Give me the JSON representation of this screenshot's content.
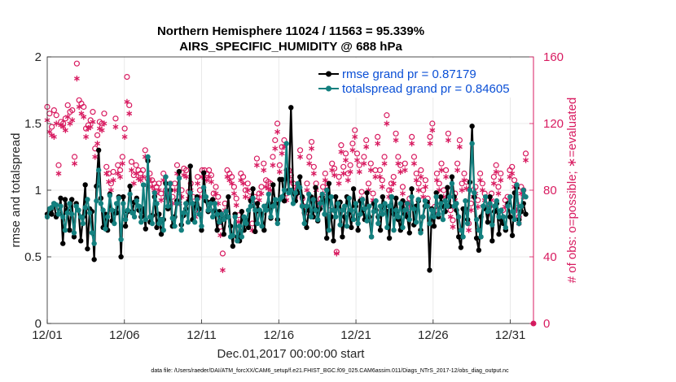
{
  "chart_data": {
    "type": "line",
    "title": "Northern Hemisphere 11024 / 11563 = 95.339%",
    "subtitle": "AIRS_SPECIFIC_HUMIDITY @ 688 hPa",
    "xlabel": "Dec.01,2017 00:00:00 start",
    "ylabel_left": "rmse and totalspread",
    "ylabel_right": "# of obs: o=possible; ∗=evaluated",
    "xlim": [
      0,
      31.5
    ],
    "ylim_left": [
      0,
      2
    ],
    "ylim_right": [
      0,
      160
    ],
    "x_ticks": [
      0,
      5,
      10,
      15,
      20,
      25,
      30
    ],
    "x_tick_labels": [
      "12/01",
      "12/06",
      "12/11",
      "12/16",
      "12/21",
      "12/26",
      "12/31"
    ],
    "y_left_ticks": [
      0,
      0.5,
      1,
      1.5,
      2
    ],
    "y_left_tick_labels": [
      "0",
      "0.5",
      "1",
      "1.5",
      "2"
    ],
    "y_right_ticks": [
      0,
      40,
      80,
      120,
      160
    ],
    "y_right_tick_labels": [
      "0",
      "40",
      "80",
      "120",
      "160"
    ],
    "grid": true,
    "legend_position": "top-right",
    "series": [
      {
        "name": "rmse grand pr = 0.87179",
        "axis": "left",
        "color": "#000000",
        "marker": "filled-circle",
        "values": [
          0.82,
          0.85,
          0.82,
          0.9,
          0.8,
          0.82,
          0.94,
          0.6,
          0.93,
          0.85,
          0.7,
          0.93,
          0.65,
          0.9,
          0.85,
          0.62,
          0.8,
          1.04,
          0.56,
          0.86,
          0.84,
          0.48,
          1.03,
          1.3,
          0.94,
          0.72,
          0.82,
          0.7,
          0.97,
          0.77,
          0.84,
          0.83,
          0.95,
          0.5,
          0.95,
          0.73,
          0.84,
          1.03,
          0.84,
          0.91,
          0.94,
          0.85,
          0.8,
          0.86,
          0.71,
          1.22,
          0.76,
          0.81,
          0.95,
          0.72,
          0.82,
          0.67,
          0.78,
          1.05,
          0.86,
          1.0,
          0.73,
          0.8,
          0.92,
          1.14,
          0.74,
          0.81,
          0.86,
          0.91,
          1.18,
          0.78,
          0.89,
          0.95,
          0.86,
          0.7,
          1.13,
          0.92,
          0.84,
          0.91,
          0.93,
          0.85,
          0.7,
          0.84,
          0.78,
          0.67,
          0.8,
          0.95,
          0.73,
          0.58,
          0.82,
          0.65,
          0.62,
          0.84,
          0.7,
          0.78,
          0.72,
          0.92,
          1.01,
          0.69,
          0.9,
          0.84,
          0.82,
          0.7,
          0.88,
          0.9,
          0.79,
          1.04,
          0.9,
          0.78,
          1.08,
          1.08,
          0.92,
          1.15,
          1.0,
          1.62,
          0.98,
          0.92,
          0.98,
          1.1,
          0.95,
          0.83,
          0.72,
          0.85,
          0.95,
          0.8,
          1.02,
          0.77,
          0.86,
          0.95,
          0.92,
          0.64,
          1.05,
          0.8,
          0.62,
          0.95,
          0.88,
          0.91,
          0.65,
          0.8,
          0.95,
          0.83,
          0.72,
          1.01,
          0.88,
          0.7,
          0.92,
          0.85,
          0.78,
          0.98,
          0.8,
          0.65,
          0.9,
          0.85,
          0.8,
          0.7,
          0.95,
          0.88,
          0.84,
          0.64,
          0.95,
          0.82,
          0.94,
          0.78,
          0.7,
          0.92,
          0.82,
          0.8,
          0.68,
          1.01,
          0.74,
          0.88,
          0.92,
          0.7,
          0.8,
          0.88,
          0.91,
          0.4,
          0.86,
          0.73,
          0.98,
          0.8,
          0.95,
          0.88,
          0.84,
          1.02,
          0.88,
          1.1,
          0.95,
          0.85,
          0.65,
          0.57,
          0.86,
          0.86,
          0.78,
          1.06,
          1.48,
          0.95,
          0.64,
          0.55,
          0.8,
          0.88,
          0.86,
          0.76,
          0.95,
          0.62,
          0.84,
          0.9,
          0.67,
          0.78,
          0.75,
          0.7,
          0.9,
          0.8,
          0.66,
          0.98,
          1.02,
          0.78,
          0.84,
          0.9,
          0.82
        ]
      },
      {
        "name": "totalspread grand pr = 0.84605",
        "axis": "left",
        "color": "#13807f",
        "marker": "filled-circle",
        "values": [
          0.8,
          0.86,
          0.87,
          0.9,
          0.89,
          0.82,
          0.88,
          0.8,
          0.7,
          0.83,
          0.9,
          0.82,
          0.68,
          0.88,
          0.85,
          0.8,
          0.75,
          0.87,
          0.93,
          0.83,
          0.68,
          0.6,
          0.92,
          1.15,
          0.9,
          0.85,
          0.71,
          0.8,
          0.96,
          0.85,
          0.75,
          0.9,
          0.94,
          0.63,
          0.9,
          0.78,
          0.85,
          0.97,
          0.83,
          0.8,
          0.92,
          0.88,
          0.76,
          1.04,
          0.78,
          1.25,
          0.8,
          0.75,
          0.98,
          0.9,
          0.75,
          0.78,
          0.7,
          1.1,
          0.88,
          1.05,
          0.79,
          0.73,
          0.9,
          1.09,
          0.7,
          0.83,
          0.9,
          0.76,
          0.98,
          0.9,
          0.76,
          0.93,
          0.82,
          0.73,
          1.02,
          0.95,
          0.85,
          0.9,
          0.8,
          0.9,
          0.82,
          0.76,
          0.82,
          0.78,
          0.84,
          0.8,
          0.65,
          0.66,
          0.8,
          0.62,
          0.73,
          0.65,
          0.8,
          0.75,
          0.85,
          0.88,
          0.94,
          0.85,
          0.75,
          0.85,
          0.73,
          0.88,
          0.85,
          0.97,
          0.8,
          0.88,
          0.93,
          0.75,
          0.93,
          0.95,
          1.0,
          1.35,
          0.98,
          1.0,
          0.9,
          0.98,
          1.05,
          1.02,
          0.88,
          0.75,
          0.88,
          0.97,
          0.8,
          0.93,
          0.85,
          0.78,
          0.9,
          0.97,
          0.82,
          1.0,
          0.7,
          0.95,
          0.85,
          0.8,
          0.9,
          0.74,
          0.85,
          0.88,
          0.73,
          0.94,
          0.85,
          0.78,
          0.9,
          0.75,
          0.82,
          0.93,
          0.86,
          0.77,
          0.88,
          0.65,
          0.84,
          0.92,
          0.75,
          0.88,
          0.82,
          0.9,
          0.72,
          0.88,
          0.95,
          0.7,
          0.85,
          0.8,
          0.9,
          0.72,
          0.85,
          0.9,
          0.78,
          0.95,
          0.86,
          0.76,
          0.93,
          0.68,
          0.8,
          0.92,
          0.88,
          0.75,
          0.85,
          0.8,
          0.95,
          0.82,
          0.9,
          0.78,
          0.92,
          0.88,
          0.95,
          1.05,
          0.88,
          0.9,
          0.8,
          0.7,
          0.65,
          0.92,
          0.75,
          1.0,
          1.35,
          0.98,
          0.78,
          0.7,
          0.65,
          0.88,
          0.95,
          0.84,
          0.9,
          0.74,
          0.88,
          0.92,
          0.8,
          0.85,
          0.8,
          0.72,
          0.88,
          0.95,
          0.84,
          0.78,
          1.04,
          0.75,
          0.88,
          1.0,
          0.95
        ]
      },
      {
        "name": "possible obs",
        "axis": "right",
        "color": "#d81b60",
        "marker": "open-circle",
        "legend": false,
        "values": [
          130,
          126,
          118,
          128,
          125,
          95,
          121,
          120,
          123,
          131,
          127,
          128,
          100,
          156,
          134,
          132,
          130,
          117,
          119,
          122,
          127,
          105,
          113,
          121,
          120,
          126,
          94,
          90,
          84,
          91,
          123,
          95,
          92,
          100,
          117,
          148,
          131,
          97,
          89,
          95,
          92,
          90,
          92,
          104,
          87,
          90,
          86,
          84,
          82,
          84,
          78,
          90,
          80,
          82,
          84,
          76,
          84,
          95,
          76,
          80,
          93,
          92,
          79,
          84,
          76,
          68,
          88,
          80,
          92,
          92,
          90,
          92,
          89,
          78,
          82,
          76,
          58,
          42,
          72,
          92,
          90,
          88,
          82,
          75,
          65,
          90,
          88,
          80,
          84,
          79,
          60,
          76,
          99,
          78,
          82,
          96,
          86,
          85,
          84,
          100,
          110,
          120,
          95,
          106,
          110,
          78,
          92,
          89,
          84,
          80,
          82,
          104,
          75,
          70,
          84,
          100,
          109,
          94,
          84,
          72,
          75,
          82,
          90,
          84,
          68,
          96,
          93,
          43,
          88,
          107,
          94,
          102,
          90,
          95,
          108,
          116,
          102,
          95,
          79,
          100,
          110,
          84,
          96,
          78,
          92,
          112,
          92,
          86,
          100,
          125,
          80,
          84,
          88,
          114,
          100,
          95,
          82,
          96,
          72,
          75,
          112,
          100,
          90,
          84,
          92,
          80,
          86,
          75,
          112,
          120,
          70,
          90,
          84,
          96,
          80,
          92,
          114,
          68,
          62,
          78,
          96,
          110,
          84,
          90,
          85,
          60,
          72,
          80,
          82,
          74,
          90,
          84,
          78,
          74,
          70,
          78,
          88,
          95,
          82,
          90,
          68,
          74,
          76,
          92,
          94,
          86,
          72,
          64,
          82,
          80,
          102
        ]
      },
      {
        "name": "evaluated obs",
        "axis": "right",
        "color": "#d81b60",
        "marker": "asterisk",
        "legend": false,
        "values": [
          122,
          115,
          113,
          112,
          120,
          90,
          119,
          118,
          116,
          124,
          120,
          122,
          96,
          147,
          130,
          126,
          124,
          112,
          117,
          118,
          121,
          100,
          108,
          117,
          116,
          120,
          90,
          85,
          80,
          86,
          118,
          90,
          88,
          96,
          112,
          133,
          126,
          92,
          84,
          90,
          87,
          86,
          88,
          100,
          83,
          86,
          82,
          80,
          78,
          80,
          74,
          86,
          76,
          78,
          80,
          72,
          80,
          90,
          72,
          76,
          89,
          88,
          75,
          80,
          72,
          64,
          84,
          76,
          88,
          88,
          86,
          88,
          85,
          74,
          78,
          72,
          53,
          32,
          68,
          88,
          86,
          84,
          78,
          71,
          61,
          86,
          84,
          76,
          80,
          75,
          56,
          72,
          95,
          74,
          78,
          92,
          82,
          81,
          80,
          95,
          105,
          115,
          91,
          102,
          106,
          74,
          88,
          85,
          80,
          76,
          78,
          100,
          71,
          66,
          80,
          96,
          105,
          90,
          80,
          68,
          71,
          78,
          86,
          80,
          64,
          92,
          89,
          42,
          84,
          103,
          90,
          98,
          86,
          91,
          104,
          112,
          98,
          91,
          75,
          96,
          106,
          80,
          92,
          74,
          88,
          108,
          88,
          82,
          96,
          120,
          76,
          80,
          84,
          110,
          96,
          91,
          78,
          92,
          68,
          71,
          108,
          96,
          86,
          80,
          88,
          76,
          82,
          71,
          108,
          116,
          66,
          86,
          80,
          92,
          76,
          88,
          110,
          64,
          58,
          74,
          92,
          106,
          80,
          86,
          81,
          56,
          68,
          76,
          78,
          70,
          86,
          80,
          74,
          70,
          66,
          74,
          84,
          91,
          78,
          86,
          64,
          70,
          72,
          88,
          90,
          82,
          68,
          60,
          78,
          76,
          98
        ]
      }
    ]
  },
  "legend": {
    "rmse_label": "rmse grand pr = 0.87179",
    "spread_label": "totalspread grand pr = 0.84605"
  },
  "footnote": "data file: /Users/raeder/DAI/ATM_forcXX/CAM6_setup/f.e21.FHIST_BGC.f09_025.CAM6assim.011/Diags_NTrS_2017-12/obs_diag_output.nc"
}
